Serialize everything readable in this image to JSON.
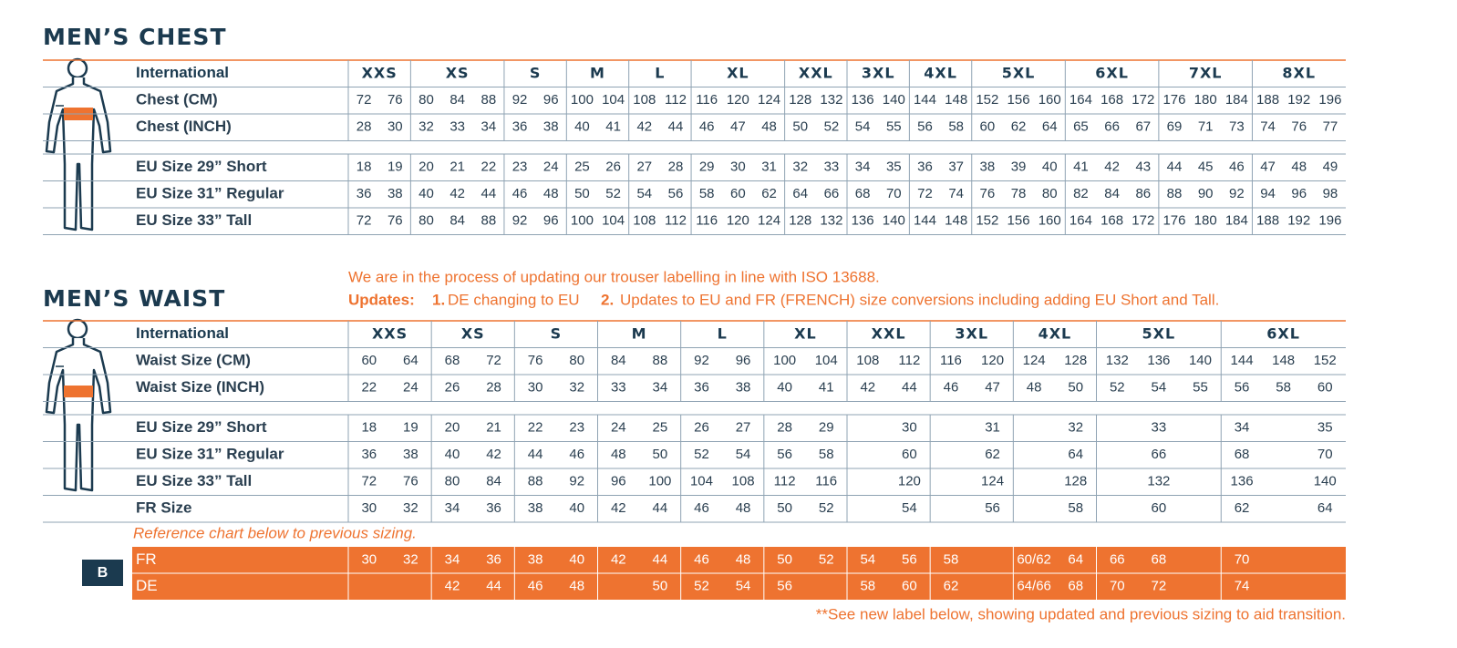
{
  "chest": {
    "title": "MEN’S CHEST",
    "header_label": "International",
    "sizes": [
      "XXS",
      "XS",
      "S",
      "M",
      "L",
      "XL",
      "XXL",
      "3XL",
      "4XL",
      "5XL",
      "6XL",
      "7XL",
      "8XL"
    ],
    "rows": [
      {
        "label": "Chest (CM)",
        "groups": [
          [
            72,
            76
          ],
          [
            80,
            84,
            88
          ],
          [
            92,
            96
          ],
          [
            100,
            104
          ],
          [
            108,
            112
          ],
          [
            116,
            120,
            124
          ],
          [
            128,
            132
          ],
          [
            136,
            140
          ],
          [
            144,
            148
          ],
          [
            152,
            156,
            160
          ],
          [
            164,
            168,
            172
          ],
          [
            176,
            180,
            184
          ],
          [
            188,
            192,
            196
          ]
        ]
      },
      {
        "label": "Chest (INCH)",
        "groups": [
          [
            28,
            30
          ],
          [
            32,
            33,
            34
          ],
          [
            36,
            38
          ],
          [
            40,
            41
          ],
          [
            42,
            44
          ],
          [
            46,
            47,
            48
          ],
          [
            50,
            52
          ],
          [
            54,
            55
          ],
          [
            56,
            58
          ],
          [
            60,
            62,
            64
          ],
          [
            65,
            66,
            67
          ],
          [
            69,
            71,
            73
          ],
          [
            74,
            76,
            77
          ]
        ]
      },
      {
        "label": "EU Size 29” Short",
        "groups": [
          [
            18,
            19
          ],
          [
            20,
            21,
            22
          ],
          [
            23,
            24
          ],
          [
            25,
            26
          ],
          [
            27,
            28
          ],
          [
            29,
            30,
            31
          ],
          [
            32,
            33
          ],
          [
            34,
            35
          ],
          [
            36,
            37
          ],
          [
            38,
            39,
            40
          ],
          [
            41,
            42,
            43
          ],
          [
            44,
            45,
            46
          ],
          [
            47,
            48,
            49
          ]
        ]
      },
      {
        "label": "EU Size 31” Regular",
        "groups": [
          [
            36,
            38
          ],
          [
            40,
            42,
            44
          ],
          [
            46,
            48
          ],
          [
            50,
            52
          ],
          [
            54,
            56
          ],
          [
            58,
            60,
            62
          ],
          [
            64,
            66
          ],
          [
            68,
            70
          ],
          [
            72,
            74
          ],
          [
            76,
            78,
            80
          ],
          [
            82,
            84,
            86
          ],
          [
            88,
            90,
            92
          ],
          [
            94,
            96,
            98
          ]
        ]
      },
      {
        "label": "EU Size 33” Tall",
        "groups": [
          [
            72,
            76
          ],
          [
            80,
            84,
            88
          ],
          [
            92,
            96
          ],
          [
            100,
            104
          ],
          [
            108,
            112
          ],
          [
            116,
            120,
            124
          ],
          [
            128,
            132
          ],
          [
            136,
            140
          ],
          [
            144,
            148
          ],
          [
            152,
            156,
            160
          ],
          [
            164,
            168,
            172
          ],
          [
            176,
            180,
            184
          ],
          [
            188,
            192,
            196
          ]
        ]
      }
    ]
  },
  "notes": {
    "line1": "We are in the process of updating our trouser labelling in line with ISO 13688.",
    "updates_label": "Updates:",
    "item1_num": "1.",
    "item1_text": "DE changing to EU",
    "item2_num": "2.",
    "item2_text": "Updates to EU and FR (FRENCH) size conversions including adding EU Short and Tall."
  },
  "waist": {
    "title": "MEN’S WAIST",
    "header_label": "International",
    "sizes": [
      "XXS",
      "XS",
      "S",
      "M",
      "L",
      "XL",
      "XXL",
      "3XL",
      "4XL",
      "5XL",
      "6XL"
    ],
    "rows": [
      {
        "label": "Waist Size (CM)",
        "groups": [
          [
            60,
            64
          ],
          [
            68,
            72
          ],
          [
            76,
            80
          ],
          [
            84,
            88
          ],
          [
            92,
            96
          ],
          [
            100,
            104
          ],
          [
            108,
            112
          ],
          [
            116,
            120
          ],
          [
            124,
            128
          ],
          [
            132,
            136,
            140
          ],
          [
            144,
            148,
            152
          ]
        ]
      },
      {
        "label": "Waist Size (INCH)",
        "groups": [
          [
            22,
            24
          ],
          [
            26,
            28
          ],
          [
            30,
            32
          ],
          [
            33,
            34
          ],
          [
            36,
            38
          ],
          [
            40,
            41
          ],
          [
            42,
            44
          ],
          [
            46,
            47
          ],
          [
            48,
            50
          ],
          [
            52,
            54,
            55
          ],
          [
            56,
            58,
            60
          ]
        ]
      },
      {
        "label": "EU Size 29” Short",
        "groups": [
          [
            18,
            19
          ],
          [
            20,
            21
          ],
          [
            22,
            23
          ],
          [
            24,
            25
          ],
          [
            26,
            27
          ],
          [
            28,
            29
          ],
          [
            null,
            30
          ],
          [
            null,
            31
          ],
          [
            null,
            32
          ],
          [
            null,
            33,
            null
          ],
          [
            34,
            null,
            35
          ]
        ]
      },
      {
        "label": "EU Size 31” Regular",
        "groups": [
          [
            36,
            38
          ],
          [
            40,
            42
          ],
          [
            44,
            46
          ],
          [
            48,
            50
          ],
          [
            52,
            54
          ],
          [
            56,
            58
          ],
          [
            null,
            60
          ],
          [
            null,
            62
          ],
          [
            null,
            64
          ],
          [
            null,
            66,
            null
          ],
          [
            68,
            null,
            70
          ]
        ]
      },
      {
        "label": "EU Size 33” Tall",
        "groups": [
          [
            72,
            76
          ],
          [
            80,
            84
          ],
          [
            88,
            92
          ],
          [
            96,
            100
          ],
          [
            104,
            108
          ],
          [
            112,
            116
          ],
          [
            null,
            120
          ],
          [
            null,
            124
          ],
          [
            null,
            128
          ],
          [
            null,
            132,
            null
          ],
          [
            136,
            null,
            140
          ]
        ]
      },
      {
        "label": "FR Size",
        "groups": [
          [
            30,
            32
          ],
          [
            34,
            36
          ],
          [
            38,
            40
          ],
          [
            42,
            44
          ],
          [
            46,
            48
          ],
          [
            50,
            52
          ],
          [
            null,
            54
          ],
          [
            null,
            56
          ],
          [
            null,
            58
          ],
          [
            null,
            60,
            null
          ],
          [
            62,
            null,
            64
          ]
        ]
      }
    ]
  },
  "reference": {
    "caption": "Reference chart below to previous sizing.",
    "badge": "B",
    "rows": [
      {
        "label": "FR",
        "groups": [
          [
            30,
            32
          ],
          [
            34,
            36
          ],
          [
            38,
            40
          ],
          [
            42,
            44
          ],
          [
            46,
            48
          ],
          [
            50,
            52
          ],
          [
            54,
            56
          ],
          [
            58,
            null
          ],
          [
            "60/62",
            64
          ],
          [
            66,
            68,
            null
          ],
          [
            70,
            null,
            null
          ]
        ]
      },
      {
        "label": "DE",
        "groups": [
          [
            null,
            null
          ],
          [
            42,
            44
          ],
          [
            46,
            48
          ],
          [
            null,
            50
          ],
          [
            52,
            54
          ],
          [
            56,
            null
          ],
          [
            58,
            60
          ],
          [
            62,
            null
          ],
          [
            "64/66",
            68
          ],
          [
            70,
            72,
            null
          ],
          [
            74,
            null,
            null
          ]
        ]
      }
    ]
  },
  "footnote": "**See new label below, showing updated and previous sizing to aid transition."
}
